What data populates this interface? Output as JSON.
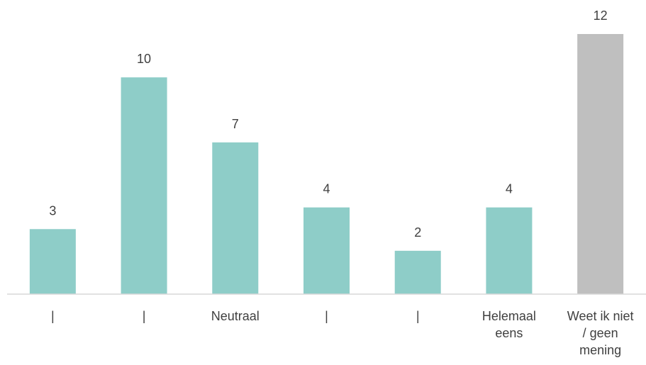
{
  "chart_data": {
    "type": "bar",
    "categories": [
      [
        "|"
      ],
      [
        "|"
      ],
      [
        "Neutraal"
      ],
      [
        "|"
      ],
      [
        "|"
      ],
      [
        "Helemaal",
        "eens"
      ],
      [
        "Weet ik niet",
        "/ geen",
        "mening"
      ]
    ],
    "values": [
      3,
      10,
      7,
      4,
      2,
      4,
      12
    ],
    "value_labels": [
      "3",
      "10",
      "7",
      "4",
      "2",
      "4",
      "12"
    ],
    "colors": [
      "#8ECDC8",
      "#8ECDC8",
      "#8ECDC8",
      "#8ECDC8",
      "#8ECDC8",
      "#8ECDC8",
      "#BFBFBF"
    ],
    "ylim": [
      0,
      12
    ],
    "grid": false,
    "legend": "none"
  }
}
